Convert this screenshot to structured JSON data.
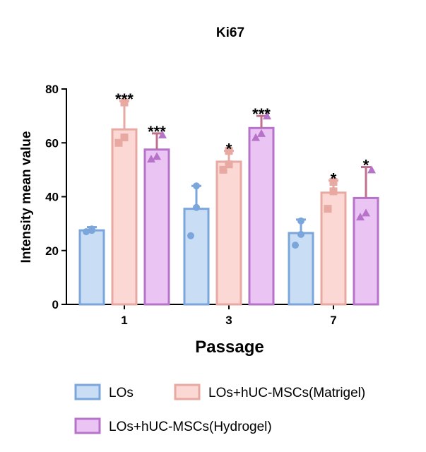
{
  "chart_data": {
    "type": "bar",
    "title": "Ki67",
    "xlabel": "Passage",
    "ylabel": "Intensity mean value",
    "categories": [
      "1",
      "3",
      "7"
    ],
    "ylim": [
      0,
      80
    ],
    "yticks": [
      "0",
      "20",
      "40",
      "60",
      "80"
    ],
    "series": [
      {
        "name": "LOs",
        "values": [
          27.5,
          35.5,
          26.5
        ],
        "errors": [
          1.2,
          8.5,
          5.0
        ],
        "points": [
          [
            27,
            28,
            27.5
          ],
          [
            25.5,
            36,
            44
          ],
          [
            22,
            26,
            31
          ]
        ],
        "marker": "circle",
        "fill": "#c9ddf5",
        "stroke": "#7aa6dc",
        "significance": [
          "",
          "",
          ""
        ]
      },
      {
        "name": "LOs+hUC-MSCs(Matrigel)",
        "values": [
          65,
          53,
          41.5
        ],
        "errors": [
          10.5,
          4.0,
          4.5
        ],
        "points": [
          [
            60,
            62,
            75
          ],
          [
            50,
            52,
            57
          ],
          [
            35.5,
            42,
            45.5
          ]
        ],
        "marker": "square",
        "fill": "#fbd8d3",
        "stroke": "#e8a9a3",
        "significance": [
          "***",
          "*",
          "*"
        ]
      },
      {
        "name": "LOs+hUC-MSCs(Hydrogel)",
        "values": [
          57.5,
          65.5,
          39.5
        ],
        "errors": [
          6.0,
          4.5,
          11.5
        ],
        "points": [
          [
            54,
            55,
            63
          ],
          [
            62,
            63.5,
            70
          ],
          [
            32.5,
            34,
            50
          ]
        ],
        "marker": "triangle",
        "fill": "#eac5f3",
        "stroke": "#b673c9",
        "error_color": "#c0708f",
        "significance": [
          "***",
          "***",
          "*"
        ]
      }
    ],
    "legend_position": "bottom",
    "grid": false
  }
}
